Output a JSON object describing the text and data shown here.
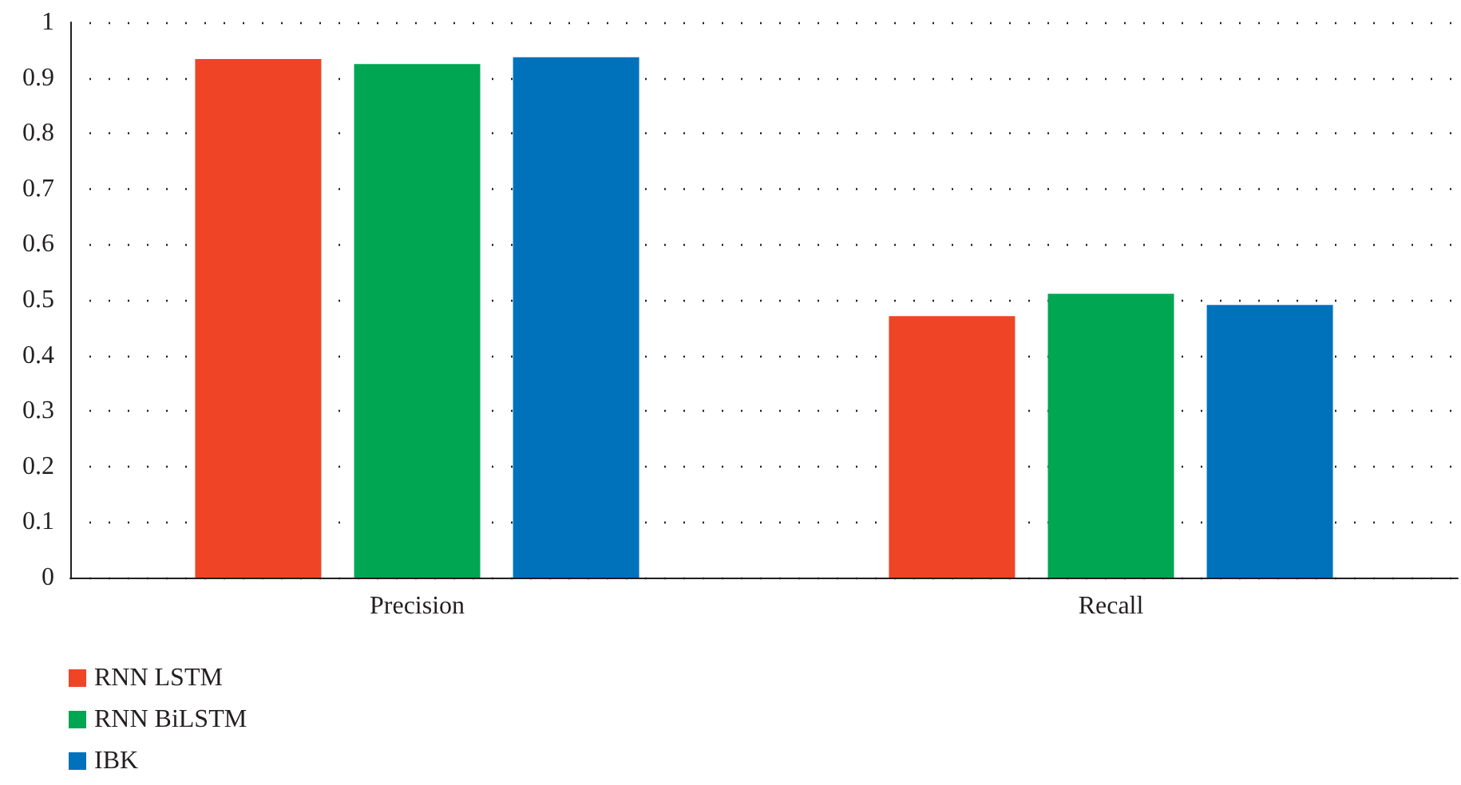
{
  "chart_data": {
    "type": "bar",
    "categories": [
      "Precision",
      "Recall"
    ],
    "series": [
      {
        "name": "RNN LSTM",
        "color": "#ef4426",
        "values": [
          0.934,
          0.471
        ]
      },
      {
        "name": "RNN BiLSTM",
        "color": "#00a651",
        "values": [
          0.925,
          0.511
        ]
      },
      {
        "name": "IBK",
        "color": "#0072bc",
        "values": [
          0.937,
          0.491
        ]
      }
    ],
    "ylim": [
      0,
      1
    ],
    "yticks": [
      0,
      0.1,
      0.2,
      0.3,
      0.4,
      0.5,
      0.6,
      0.7,
      0.8,
      0.9,
      1
    ],
    "grid": "y",
    "legend": "bottom left"
  }
}
